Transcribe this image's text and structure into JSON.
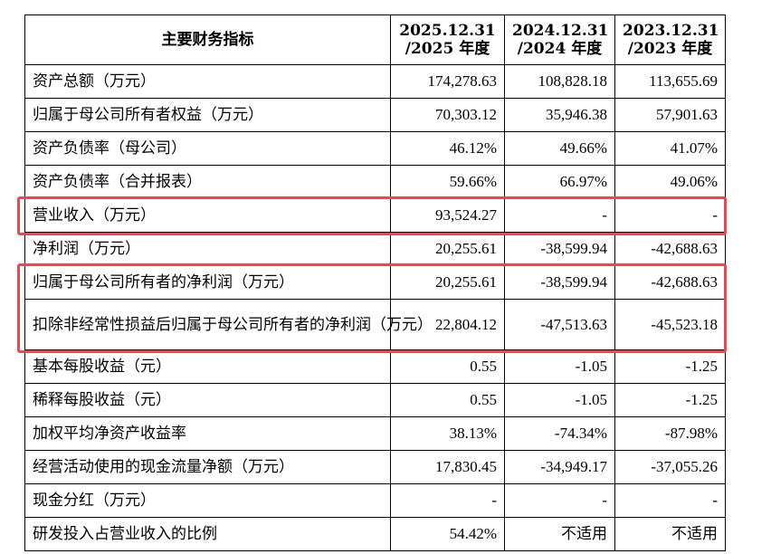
{
  "table": {
    "header": {
      "label": "主要财务指标",
      "years": [
        {
          "line1": "2025.12.31",
          "line2": "/2025 年度"
        },
        {
          "line1": "2024.12.31",
          "line2": "/2024 年度"
        },
        {
          "line1": "2023.12.31",
          "line2": "/2023 年度"
        }
      ]
    },
    "rows": [
      {
        "label": "资产总额（万元）",
        "values": [
          "174,278.63",
          "108,828.18",
          "113,655.69"
        ]
      },
      {
        "label": "归属于母公司所有者权益（万元）",
        "values": [
          "70,303.12",
          "35,946.38",
          "57,901.63"
        ]
      },
      {
        "label": "资产负债率（母公司）",
        "values": [
          "46.12%",
          "49.66%",
          "41.07%"
        ]
      },
      {
        "label": "资产负债率（合并报表）",
        "values": [
          "59.66%",
          "66.97%",
          "49.06%"
        ]
      },
      {
        "label": "营业收入（万元）",
        "values": [
          "93,524.27",
          "-",
          "-"
        ]
      },
      {
        "label": "净利润（万元）",
        "values": [
          "20,255.61",
          "-38,599.94",
          "-42,688.63"
        ]
      },
      {
        "label": "归属于母公司所有者的净利润（万元）",
        "values": [
          "20,255.61",
          "-38,599.94",
          "-42,688.63"
        ]
      },
      {
        "label": "扣除非经常性损益后归属于母公司所有者的净利润（万元）",
        "values": [
          "22,804.12",
          "-47,513.63",
          "-45,523.18"
        ]
      },
      {
        "label": "基本每股收益（元）",
        "values": [
          "0.55",
          "-1.05",
          "-1.25"
        ]
      },
      {
        "label": "稀释每股收益（元）",
        "values": [
          "0.55",
          "-1.05",
          "-1.25"
        ]
      },
      {
        "label": "加权平均净资产收益率",
        "values": [
          "38.13%",
          "-74.34%",
          "-87.98%"
        ]
      },
      {
        "label": "经营活动使用的现金流量净额（万元）",
        "values": [
          "17,830.45",
          "-34,949.17",
          "-37,055.26"
        ]
      },
      {
        "label": "现金分红（万元）",
        "values": [
          "-",
          "-",
          "-"
        ]
      },
      {
        "label": "研发投入占营业收入的比例",
        "values": [
          "54.42%",
          "不适用",
          "不适用"
        ]
      }
    ]
  },
  "highlight": {
    "color": "#e8484f"
  }
}
